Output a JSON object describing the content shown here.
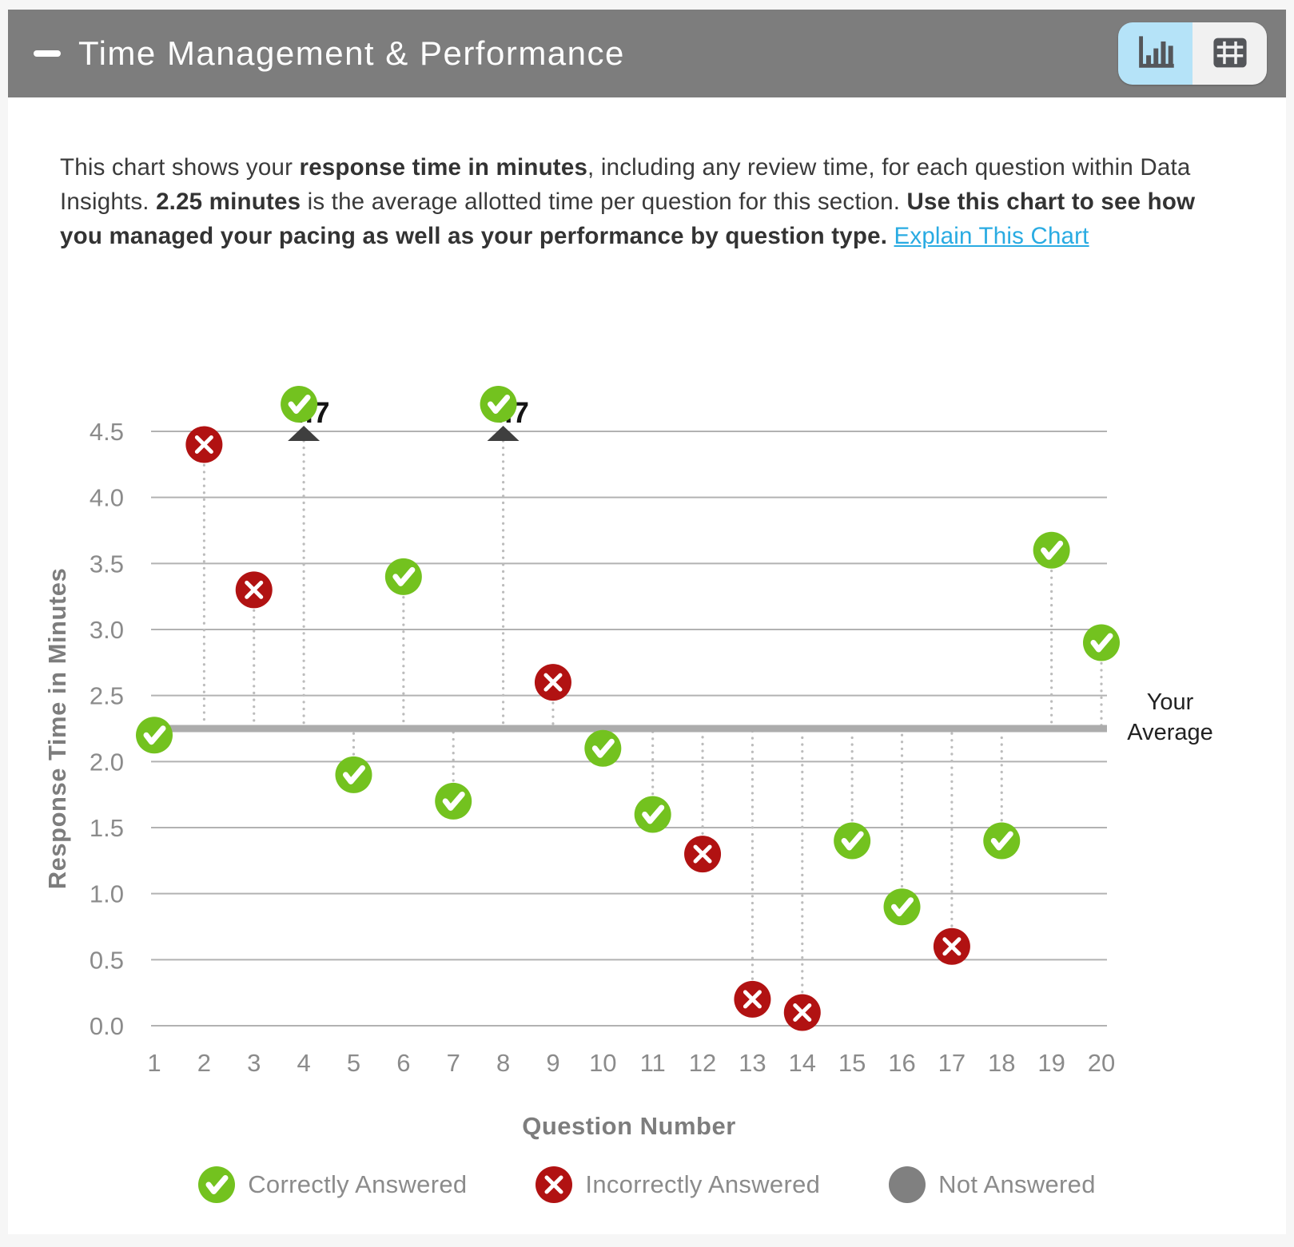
{
  "header": {
    "title": "Time Management & Performance",
    "view_toggle": {
      "chart_button": {
        "icon": "bar-chart-icon",
        "selected": true
      },
      "table_button": {
        "icon": "table-icon",
        "selected": false
      }
    }
  },
  "description": {
    "segments": [
      {
        "text": "This chart shows your ",
        "style": "normal"
      },
      {
        "text": "response time in minutes",
        "style": "bold"
      },
      {
        "text": ", including any review time, for each question within Data Insights. ",
        "style": "normal"
      },
      {
        "text": "2.25 minutes",
        "style": "bold"
      },
      {
        "text": " is the average allotted time per question for this section. ",
        "style": "normal"
      },
      {
        "text": "Use this chart to see how you managed your pacing as well as your performance by question type.",
        "style": "bold"
      },
      {
        "text": " ",
        "style": "normal"
      },
      {
        "text": "Explain This Chart",
        "style": "link"
      }
    ]
  },
  "chart_data": {
    "type": "scatter",
    "xlabel": "Question Number",
    "ylabel": "Response Time in Minutes",
    "ylim": [
      0,
      4.5
    ],
    "yticks": [
      0.0,
      0.5,
      1.0,
      1.5,
      2.0,
      2.5,
      3.0,
      3.5,
      4.0,
      4.5
    ],
    "grid": true,
    "display_cap": 4.5,
    "average": 2.25,
    "average_label_lines": [
      "Your",
      "Average"
    ],
    "points": [
      {
        "q": 1,
        "minutes": 2.2,
        "status": "correct"
      },
      {
        "q": 2,
        "minutes": 4.4,
        "status": "incorrect"
      },
      {
        "q": 3,
        "minutes": 3.3,
        "status": "incorrect"
      },
      {
        "q": 4,
        "minutes": 4.7,
        "status": "correct",
        "capped": true,
        "cap_label": "4.7"
      },
      {
        "q": 5,
        "minutes": 1.9,
        "status": "correct"
      },
      {
        "q": 6,
        "minutes": 3.4,
        "status": "correct"
      },
      {
        "q": 7,
        "minutes": 1.7,
        "status": "correct"
      },
      {
        "q": 8,
        "minutes": 4.7,
        "status": "correct",
        "capped": true,
        "cap_label": "4.7"
      },
      {
        "q": 9,
        "minutes": 2.6,
        "status": "incorrect"
      },
      {
        "q": 10,
        "minutes": 2.1,
        "status": "correct"
      },
      {
        "q": 11,
        "minutes": 1.6,
        "status": "correct"
      },
      {
        "q": 12,
        "minutes": 1.3,
        "status": "incorrect"
      },
      {
        "q": 13,
        "minutes": 0.2,
        "status": "incorrect"
      },
      {
        "q": 14,
        "minutes": 0.1,
        "status": "incorrect"
      },
      {
        "q": 15,
        "minutes": 1.4,
        "status": "correct"
      },
      {
        "q": 16,
        "minutes": 0.9,
        "status": "correct"
      },
      {
        "q": 17,
        "minutes": 0.6,
        "status": "incorrect"
      },
      {
        "q": 18,
        "minutes": 1.4,
        "status": "correct"
      },
      {
        "q": 19,
        "minutes": 3.6,
        "status": "correct"
      },
      {
        "q": 20,
        "minutes": 2.9,
        "status": "correct"
      }
    ],
    "status_colors": {
      "correct": "#73c21f",
      "incorrect": "#b11212",
      "not_answered": "#808080"
    }
  },
  "legend": {
    "items": [
      {
        "label": "Correctly Answered",
        "status": "correct"
      },
      {
        "label": "Incorrectly Answered",
        "status": "incorrect"
      },
      {
        "label": "Not Answered",
        "status": "not_answered"
      }
    ]
  }
}
